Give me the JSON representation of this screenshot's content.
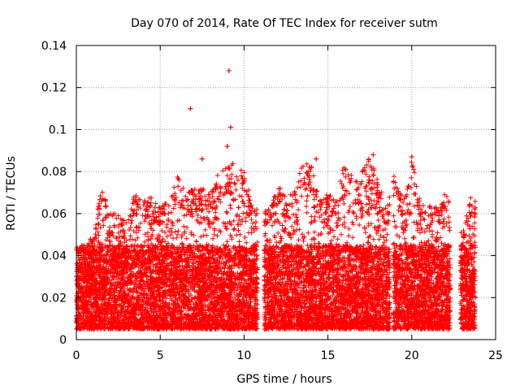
{
  "chart_data": {
    "type": "scatter",
    "title": "Day 070 of 2014, Rate Of TEC Index for receiver sutm",
    "xlabel": "GPS time / hours",
    "ylabel": "ROTI / TECUs",
    "xlim": [
      0,
      25
    ],
    "ylim": [
      0,
      0.14
    ],
    "xticks": [
      0,
      5,
      10,
      15,
      20,
      25
    ],
    "yticks": [
      0,
      0.02,
      0.04,
      0.06,
      0.08,
      0.1,
      0.12,
      0.14
    ],
    "ytick_labels": [
      "0",
      "0.02",
      "0.04",
      "0.06",
      "0.08",
      "0.1",
      "0.12",
      "0.14"
    ],
    "grid": true,
    "marker": "+",
    "marker_color": "#ff0000",
    "series_name": "ROTI",
    "coverage_segments": [
      {
        "x_start": 0.0,
        "x_end": 10.8
      },
      {
        "x_start": 11.2,
        "x_end": 18.7
      },
      {
        "x_start": 18.9,
        "x_end": 22.3
      },
      {
        "x_start": 22.9,
        "x_end": 23.8
      }
    ],
    "envelope_top": [
      {
        "x": 0.0,
        "y": 0.045
      },
      {
        "x": 0.5,
        "y": 0.044
      },
      {
        "x": 1.0,
        "y": 0.05
      },
      {
        "x": 1.5,
        "y": 0.072
      },
      {
        "x": 2.0,
        "y": 0.06
      },
      {
        "x": 2.5,
        "y": 0.062
      },
      {
        "x": 3.0,
        "y": 0.056
      },
      {
        "x": 3.5,
        "y": 0.07
      },
      {
        "x": 4.0,
        "y": 0.066
      },
      {
        "x": 4.5,
        "y": 0.068
      },
      {
        "x": 5.0,
        "y": 0.064
      },
      {
        "x": 5.5,
        "y": 0.066
      },
      {
        "x": 6.0,
        "y": 0.078
      },
      {
        "x": 6.5,
        "y": 0.07
      },
      {
        "x": 7.0,
        "y": 0.072
      },
      {
        "x": 7.5,
        "y": 0.072
      },
      {
        "x": 8.0,
        "y": 0.07
      },
      {
        "x": 8.5,
        "y": 0.08
      },
      {
        "x": 9.0,
        "y": 0.082
      },
      {
        "x": 9.5,
        "y": 0.085
      },
      {
        "x": 10.0,
        "y": 0.08
      },
      {
        "x": 10.5,
        "y": 0.064
      },
      {
        "x": 11.5,
        "y": 0.062
      },
      {
        "x": 12.0,
        "y": 0.074
      },
      {
        "x": 12.5,
        "y": 0.068
      },
      {
        "x": 13.0,
        "y": 0.07
      },
      {
        "x": 13.5,
        "y": 0.085
      },
      {
        "x": 14.0,
        "y": 0.084
      },
      {
        "x": 14.5,
        "y": 0.066
      },
      {
        "x": 15.0,
        "y": 0.07
      },
      {
        "x": 15.5,
        "y": 0.068
      },
      {
        "x": 16.0,
        "y": 0.085
      },
      {
        "x": 16.5,
        "y": 0.078
      },
      {
        "x": 17.0,
        "y": 0.08
      },
      {
        "x": 17.5,
        "y": 0.087
      },
      {
        "x": 18.0,
        "y": 0.076
      },
      {
        "x": 18.5,
        "y": 0.062
      },
      {
        "x": 19.0,
        "y": 0.08
      },
      {
        "x": 19.5,
        "y": 0.066
      },
      {
        "x": 20.0,
        "y": 0.086
      },
      {
        "x": 20.5,
        "y": 0.066
      },
      {
        "x": 21.0,
        "y": 0.064
      },
      {
        "x": 21.5,
        "y": 0.064
      },
      {
        "x": 22.0,
        "y": 0.07
      },
      {
        "x": 23.0,
        "y": 0.05
      },
      {
        "x": 23.5,
        "y": 0.068
      }
    ],
    "outliers": [
      {
        "x": 6.8,
        "y": 0.11
      },
      {
        "x": 9.1,
        "y": 0.128
      },
      {
        "x": 9.2,
        "y": 0.101
      },
      {
        "x": 9.0,
        "y": 0.092
      },
      {
        "x": 7.5,
        "y": 0.086
      },
      {
        "x": 14.3,
        "y": 0.086
      },
      {
        "x": 17.7,
        "y": 0.088
      },
      {
        "x": 20.0,
        "y": 0.087
      }
    ],
    "typical_range": [
      0.005,
      0.045
    ]
  }
}
